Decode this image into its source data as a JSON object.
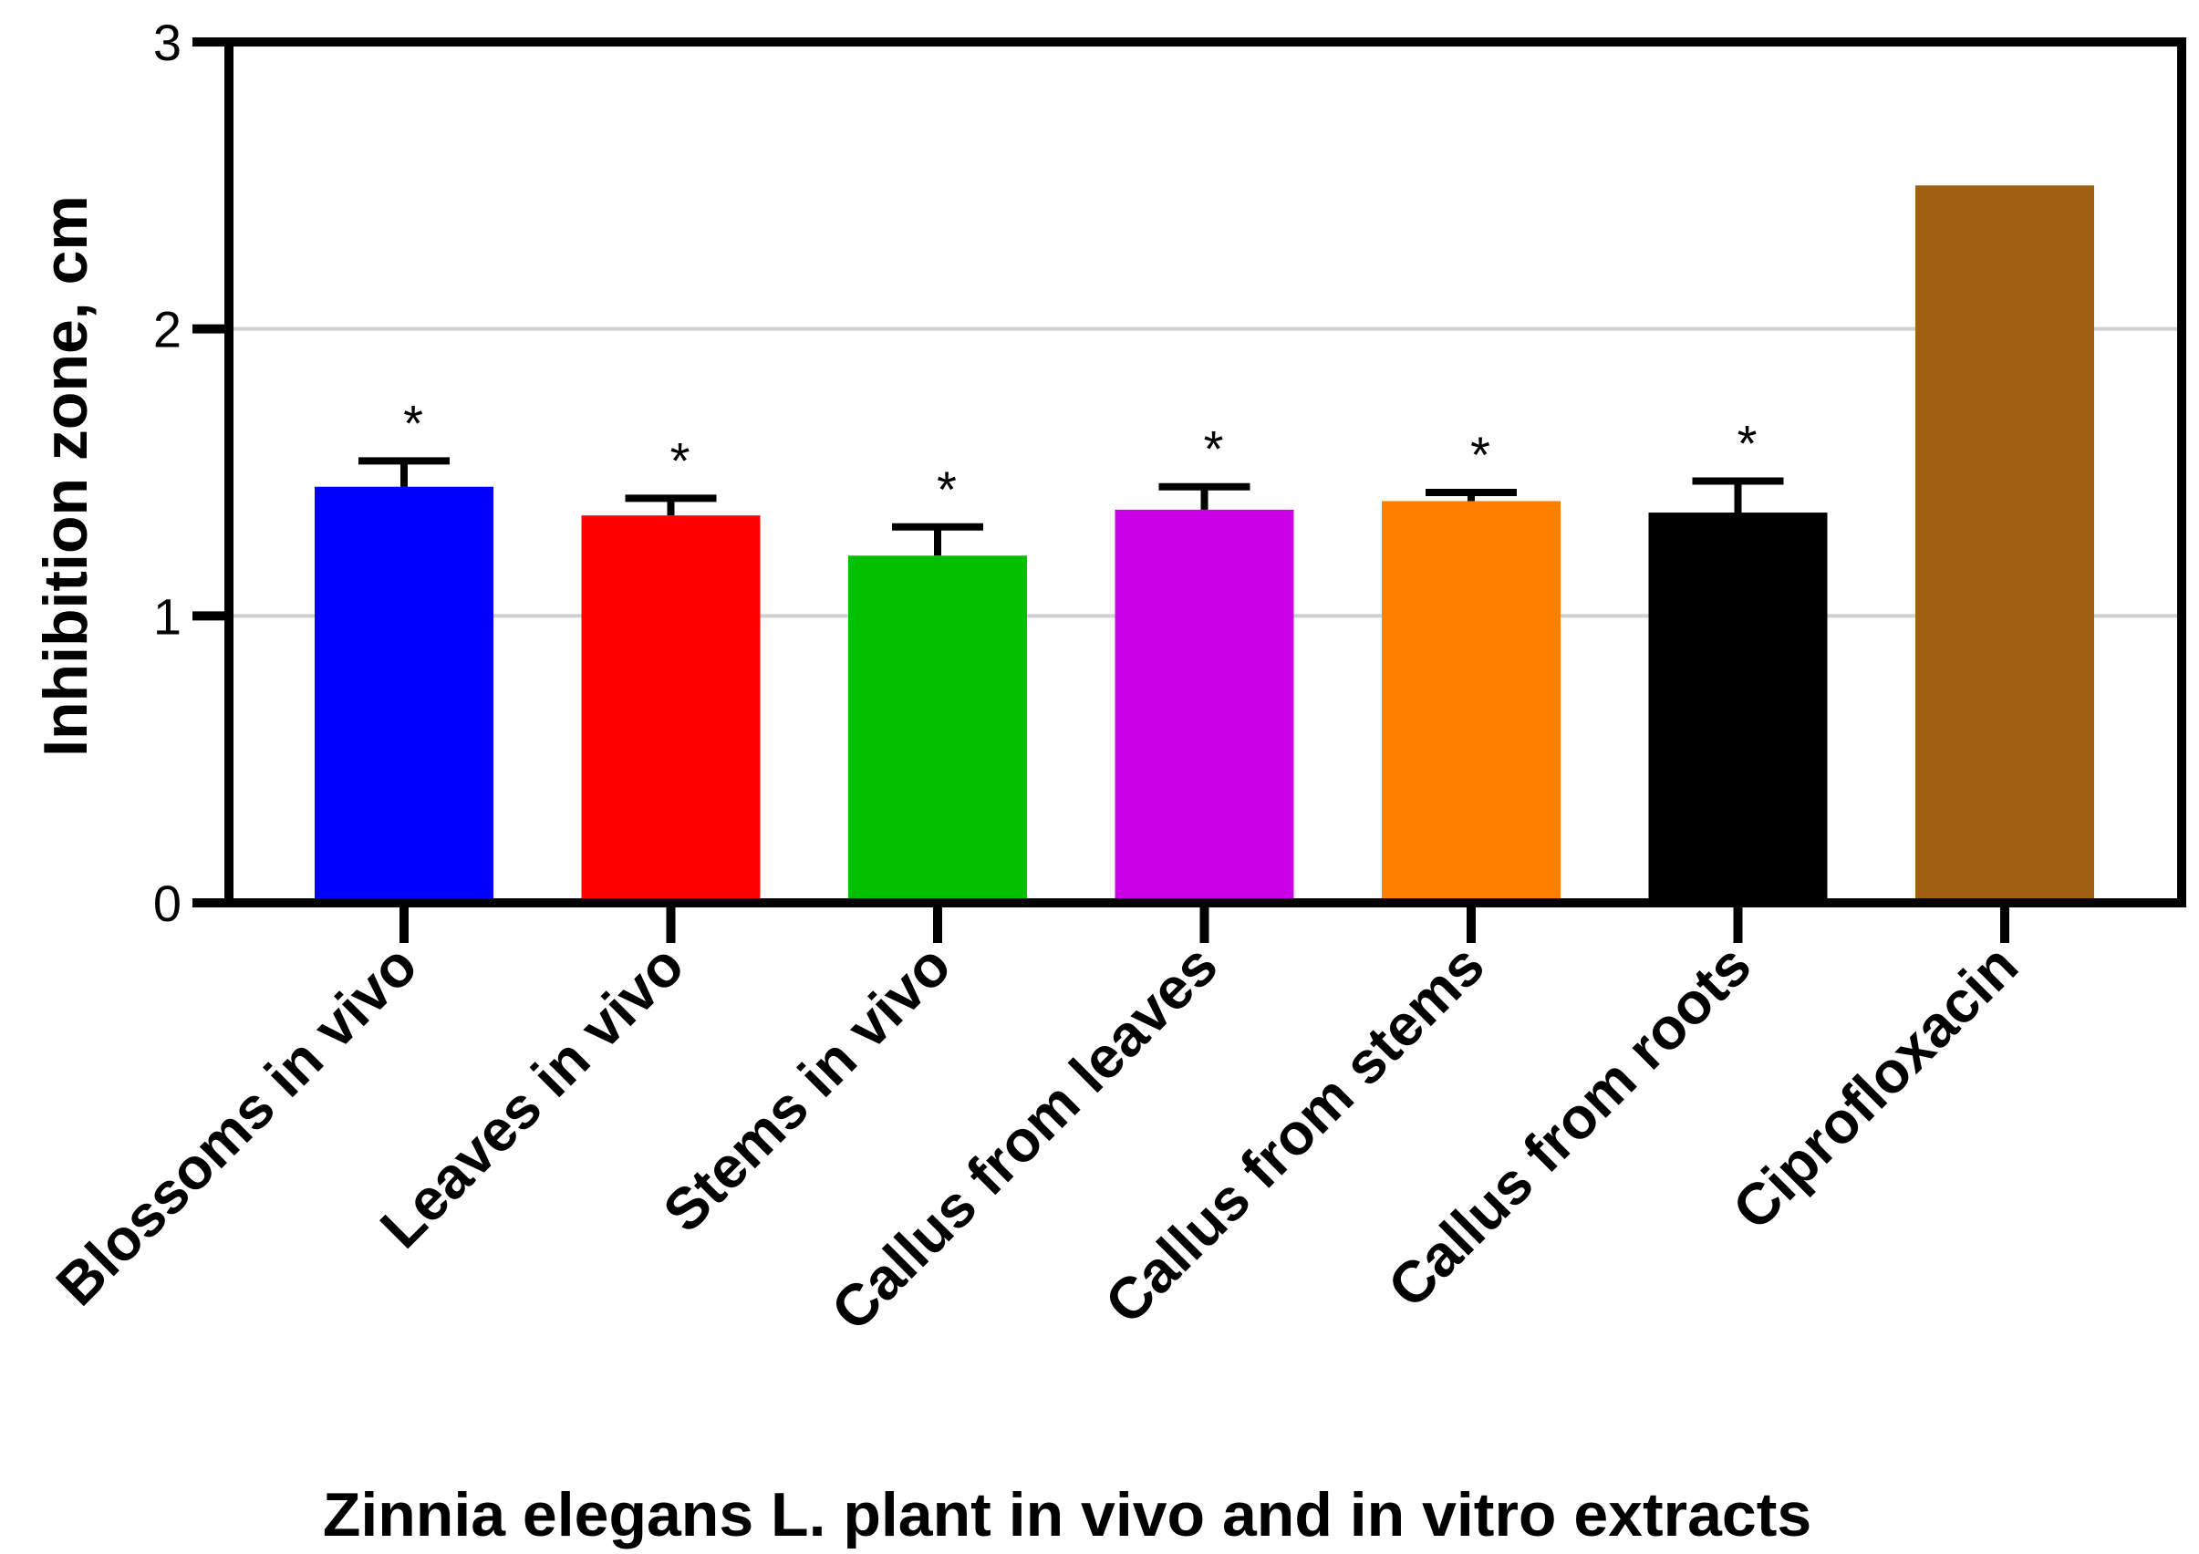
{
  "chart_data": {
    "type": "bar",
    "title": "",
    "xlabel": "Zinnia elegans L. plant in vivo and in vitro extracts",
    "ylabel": "Inhibition zone, cm",
    "ylim": [
      0,
      3
    ],
    "yticks": [
      "0",
      "1",
      "2",
      "3"
    ],
    "grid": true,
    "categories": [
      "Blossoms in vivo",
      "Leaves in vivo",
      "Stems in vivo",
      "Callus from leaves",
      "Callus from stems",
      "Callus from roots",
      "Ciprofloxacin"
    ],
    "values": [
      1.45,
      1.35,
      1.21,
      1.37,
      1.4,
      1.36,
      2.5
    ],
    "errors": [
      0.09,
      0.06,
      0.1,
      0.08,
      0.03,
      0.11,
      0
    ],
    "significance": [
      "*",
      "*",
      "*",
      "*",
      "*",
      "*",
      ""
    ],
    "colors": [
      "#0000ff",
      "#ff0000",
      "#00c000",
      "#cc00e6",
      "#ff8000",
      "#000000",
      "#a06014"
    ]
  }
}
